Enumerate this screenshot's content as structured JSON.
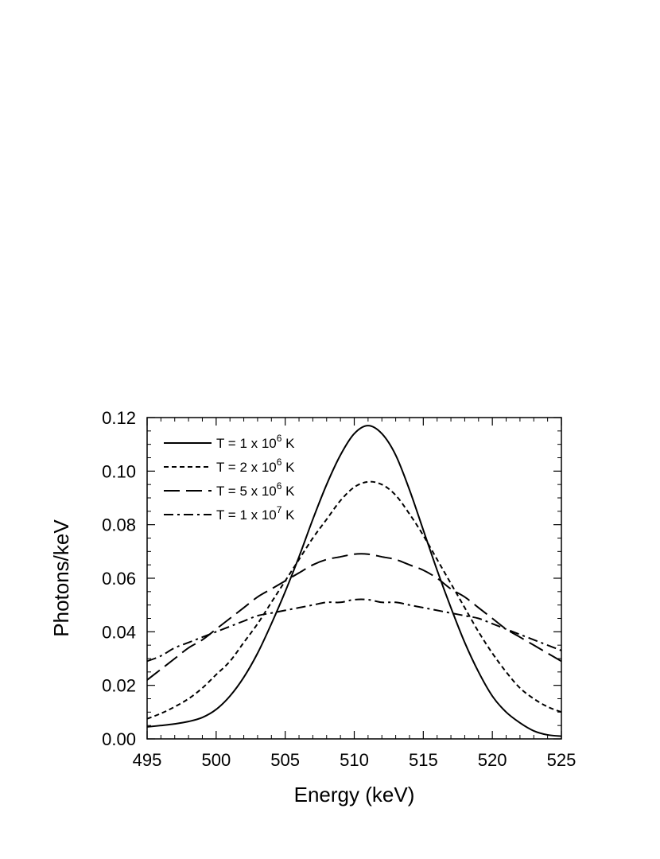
{
  "chart_data": {
    "type": "line",
    "title": "",
    "xlabel": "Energy (keV)",
    "ylabel": "Photons/keV",
    "xlim": [
      495,
      525
    ],
    "ylim": [
      0.0,
      0.12
    ],
    "xticks": [
      "495",
      "500",
      "505",
      "510",
      "515",
      "520",
      "525"
    ],
    "yticks": [
      "0.00",
      "0.02",
      "0.04",
      "0.06",
      "0.08",
      "0.10",
      "0.12"
    ],
    "grid": false,
    "legend_position": "top-left",
    "series": [
      {
        "name": "T = 1 x 10",
        "exp": "6",
        "unit": "K",
        "dash": "solid",
        "x": [
          495,
          496,
          497,
          498,
          499,
          500,
          501,
          502,
          503,
          504,
          505,
          506,
          507,
          508,
          509,
          510,
          511,
          512,
          513,
          514,
          515,
          516,
          517,
          518,
          519,
          520,
          521,
          522,
          523,
          524,
          525
        ],
        "y": [
          0.0045,
          0.005,
          0.0056,
          0.0065,
          0.008,
          0.011,
          0.016,
          0.023,
          0.032,
          0.043,
          0.055,
          0.068,
          0.082,
          0.095,
          0.106,
          0.114,
          0.117,
          0.114,
          0.106,
          0.093,
          0.078,
          0.063,
          0.049,
          0.036,
          0.025,
          0.016,
          0.01,
          0.006,
          0.003,
          0.0015,
          0.001
        ]
      },
      {
        "name": "T = 2 x 10",
        "exp": "6",
        "unit": "K",
        "dash": "short-dash",
        "x": [
          495,
          496,
          497,
          498,
          499,
          500,
          501,
          502,
          503,
          504,
          505,
          506,
          507,
          508,
          509,
          510,
          511,
          512,
          513,
          514,
          515,
          516,
          517,
          518,
          519,
          520,
          521,
          522,
          523,
          524,
          525
        ],
        "y": [
          0.0075,
          0.0095,
          0.012,
          0.015,
          0.019,
          0.024,
          0.029,
          0.036,
          0.043,
          0.051,
          0.059,
          0.067,
          0.075,
          0.082,
          0.089,
          0.094,
          0.096,
          0.095,
          0.091,
          0.084,
          0.076,
          0.067,
          0.058,
          0.049,
          0.04,
          0.032,
          0.025,
          0.019,
          0.015,
          0.012,
          0.01
        ]
      },
      {
        "name": "T = 5 x 10",
        "exp": "6",
        "unit": "K",
        "dash": "long-dash",
        "x": [
          495,
          496,
          497,
          498,
          499,
          500,
          501,
          502,
          503,
          504,
          505,
          506,
          507,
          508,
          509,
          510,
          511,
          512,
          513,
          514,
          515,
          516,
          517,
          518,
          519,
          520,
          521,
          522,
          523,
          524,
          525
        ],
        "y": [
          0.022,
          0.026,
          0.03,
          0.034,
          0.037,
          0.041,
          0.045,
          0.049,
          0.053,
          0.056,
          0.059,
          0.062,
          0.065,
          0.067,
          0.068,
          0.069,
          0.069,
          0.068,
          0.067,
          0.065,
          0.063,
          0.06,
          0.056,
          0.053,
          0.049,
          0.045,
          0.041,
          0.038,
          0.035,
          0.032,
          0.029
        ]
      },
      {
        "name": "T = 1 x 10",
        "exp": "7",
        "unit": "K",
        "dash": "dash-dot",
        "x": [
          495,
          496,
          497,
          498,
          499,
          500,
          501,
          502,
          503,
          504,
          505,
          506,
          507,
          508,
          509,
          510,
          511,
          512,
          513,
          514,
          515,
          516,
          517,
          518,
          519,
          520,
          521,
          522,
          523,
          524,
          525
        ],
        "y": [
          0.029,
          0.031,
          0.034,
          0.036,
          0.038,
          0.04,
          0.042,
          0.044,
          0.046,
          0.047,
          0.048,
          0.049,
          0.05,
          0.051,
          0.051,
          0.052,
          0.052,
          0.051,
          0.051,
          0.05,
          0.049,
          0.048,
          0.047,
          0.046,
          0.045,
          0.043,
          0.041,
          0.039,
          0.037,
          0.035,
          0.033
        ]
      }
    ]
  }
}
